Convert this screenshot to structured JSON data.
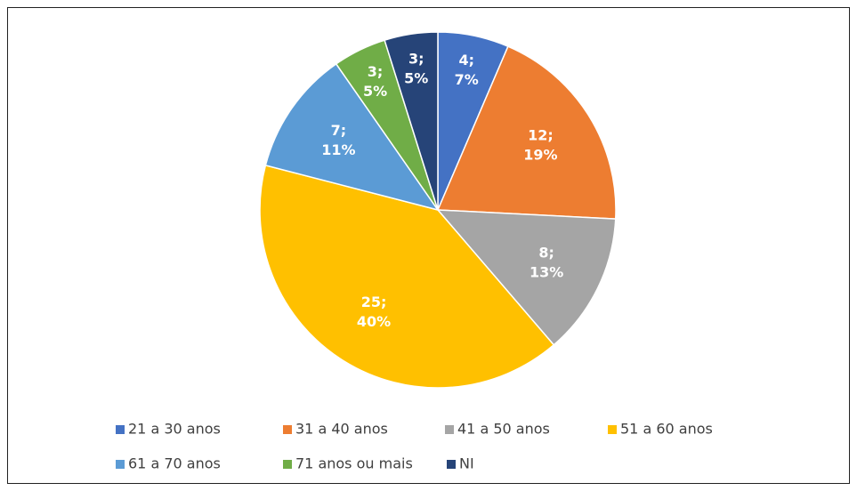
{
  "chart_data": {
    "type": "pie",
    "categories": [
      "21 a 30 anos",
      "31 a 40 anos",
      "41 a 50 anos",
      "51 a 60 anos",
      "61 a 70 anos",
      "71 anos ou mais",
      "NI"
    ],
    "values": [
      4,
      12,
      8,
      25,
      7,
      3,
      3
    ],
    "value_labels": [
      "4;",
      "12;",
      "8;",
      "25;",
      "7;",
      "3;",
      "3;"
    ],
    "percents": [
      7,
      19,
      13,
      40,
      11,
      5,
      5
    ],
    "percent_labels": [
      "7%",
      "19%",
      "13%",
      "40%",
      "11%",
      "5%",
      "5%"
    ],
    "colors": [
      "#4472c4",
      "#ed7d31",
      "#a5a5a5",
      "#ffc000",
      "#5b9bd5",
      "#70ad47",
      "#264478"
    ],
    "legend": "bottom"
  }
}
